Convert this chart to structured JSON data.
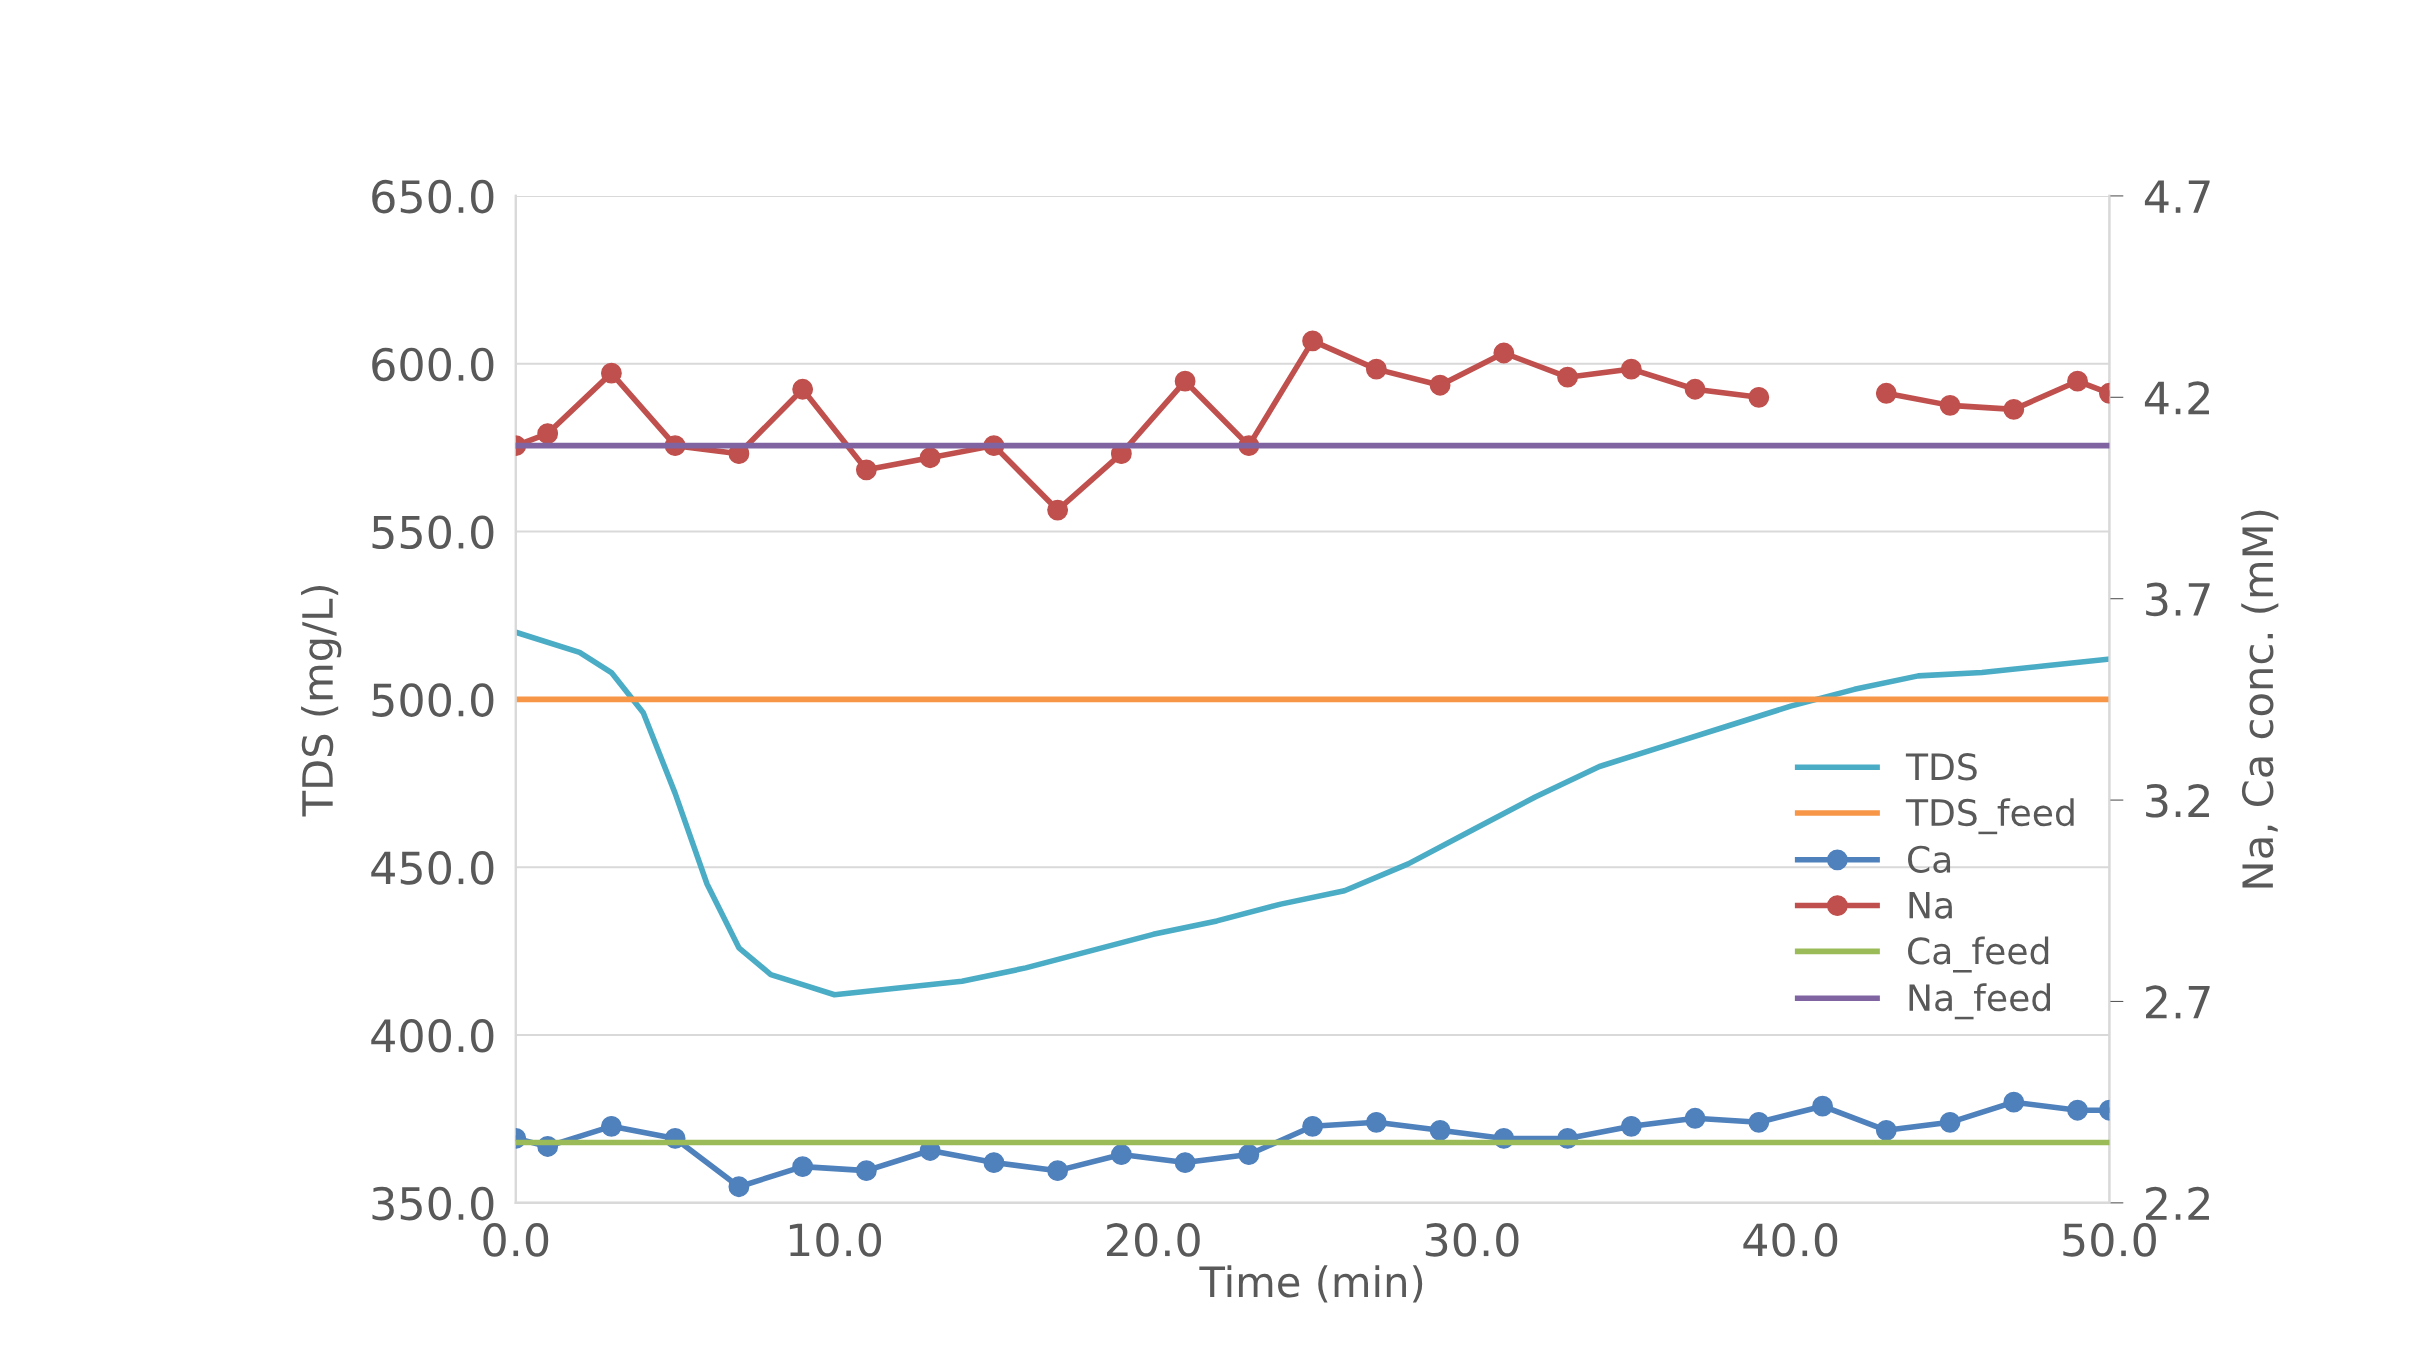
{
  "chart_data": {
    "type": "line",
    "xlabel": "Time (min)",
    "ylabel": "TDS (mg/L)",
    "y2label": "Na, Ca conc. (mM)",
    "xlim": [
      0,
      50
    ],
    "xticks": [
      {
        "value": 0,
        "label": "0.0"
      },
      {
        "value": 10,
        "label": "10.0"
      },
      {
        "value": 20,
        "label": "20.0"
      },
      {
        "value": 30,
        "label": "30.0"
      },
      {
        "value": 40,
        "label": "40.0"
      },
      {
        "value": 50,
        "label": "50.0"
      }
    ],
    "ylim": [
      350,
      650
    ],
    "yticks": [
      {
        "value": 350,
        "label": "350.0"
      },
      {
        "value": 400,
        "label": "400.0"
      },
      {
        "value": 450,
        "label": "450.0"
      },
      {
        "value": 500,
        "label": "500.0"
      },
      {
        "value": 550,
        "label": "550.0"
      },
      {
        "value": 600,
        "label": "600.0"
      },
      {
        "value": 650,
        "label": "650.0"
      }
    ],
    "y2lim": [
      2.2,
      4.7
    ],
    "y2ticks": [
      2.2,
      2.7,
      3.2,
      3.7,
      4.2,
      4.7
    ],
    "grid": "y",
    "legend": "bottom right",
    "marker": "none",
    "line_style": "solid",
    "series": [
      {
        "name": "TDS",
        "color": "#4bacc6",
        "x": [
          0,
          2,
          3,
          4,
          5,
          6,
          7,
          8,
          9,
          10,
          12,
          14,
          16,
          18,
          20,
          22,
          24,
          26,
          28,
          30,
          32,
          34,
          36,
          38,
          40,
          42,
          44,
          46,
          48,
          50
        ],
        "values": [
          520,
          514,
          508,
          496,
          472,
          445,
          426,
          418,
          415,
          412,
          414,
          416,
          420,
          425,
          430,
          434,
          439,
          443,
          451,
          461,
          471,
          480,
          486,
          492,
          498,
          503,
          507,
          508,
          510,
          512
        ]
      },
      {
        "name": "TDS_feed",
        "color": "#f79646",
        "x": [
          0,
          50
        ],
        "values": [
          500,
          500
        ]
      },
      {
        "name": "Ca",
        "color": "#4f81bd",
        "axis": "y2",
        "marker": "circle",
        "x": [
          0,
          1,
          3,
          5,
          7,
          9,
          11,
          13,
          15,
          17,
          19,
          21,
          23,
          25,
          27,
          29,
          31,
          33,
          35,
          37,
          39,
          41,
          43,
          45,
          47,
          49,
          50
        ],
        "values": [
          2.36,
          2.34,
          2.39,
          2.36,
          2.24,
          2.29,
          2.28,
          2.33,
          2.3,
          2.28,
          2.32,
          2.3,
          2.32,
          2.39,
          2.4,
          2.38,
          2.36,
          2.36,
          2.39,
          2.41,
          2.4,
          2.44,
          2.38,
          2.4,
          2.45,
          2.43,
          2.43
        ]
      },
      {
        "name": "Na",
        "color": "#c0504d",
        "axis": "y2",
        "marker": "circle",
        "x": [
          0,
          1,
          3,
          5,
          7,
          9,
          11,
          13,
          15,
          17,
          19,
          21,
          23,
          25,
          27,
          29,
          31,
          33,
          35,
          37,
          39,
          41,
          43,
          45,
          47,
          49,
          50
        ],
        "values": [
          4.08,
          4.11,
          4.26,
          4.08,
          4.06,
          4.22,
          4.02,
          4.05,
          4.08,
          3.92,
          4.06,
          4.24,
          4.08,
          4.34,
          4.27,
          4.23,
          4.31,
          4.25,
          4.27,
          4.22,
          4.2,
          null,
          4.21,
          4.18,
          4.17,
          4.24,
          4.21
        ]
      },
      {
        "name": "Ca_feed",
        "color": "#9bbb59",
        "axis": "y2",
        "x": [
          0,
          50
        ],
        "values": [
          2.35,
          2.35
        ]
      },
      {
        "name": "Na_feed",
        "color": "#8064a2",
        "axis": "y2",
        "x": [
          0,
          50
        ],
        "values": [
          4.08,
          4.08
        ]
      }
    ]
  }
}
